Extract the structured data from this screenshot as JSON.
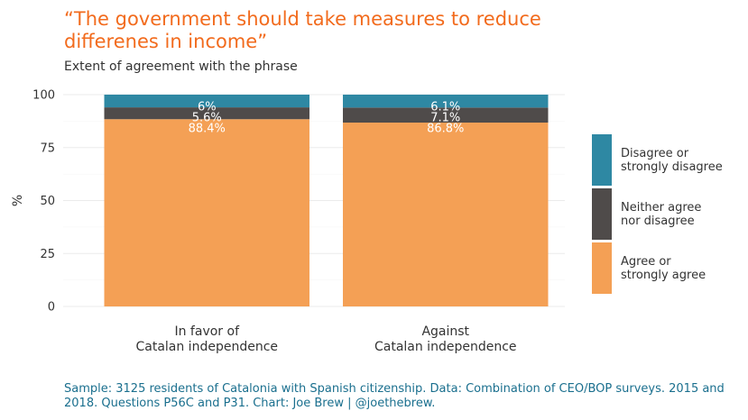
{
  "chart_data": {
    "type": "bar",
    "stacked": true,
    "title": "“The government should take measures to reduce differenes in income”",
    "subtitle": "Extent of agreement with the phrase",
    "ylabel": "%",
    "xlabel": "",
    "ylim": [
      0,
      100
    ],
    "yticks": [
      0,
      25,
      50,
      75,
      100
    ],
    "grid": true,
    "legend_position": "right",
    "categories": [
      "In favor of\nCatalan independence",
      "Against\nCatalan independence"
    ],
    "series": [
      {
        "name": "Agree or\nstrongly agree",
        "color": "#f4a055",
        "values": [
          88.4,
          86.8
        ],
        "labels": [
          "88.4%",
          "86.8%"
        ]
      },
      {
        "name": "Neither agree\nnor disagree",
        "color": "#4f4b4a",
        "values": [
          5.6,
          7.1
        ],
        "labels": [
          "5.6%",
          "7.1%"
        ]
      },
      {
        "name": "Disagree or\nstrongly disagree",
        "color": "#2e88a3",
        "values": [
          6,
          6.1
        ],
        "labels": [
          "6%",
          "6.1%"
        ]
      }
    ],
    "legend_order": [
      2,
      1,
      0
    ],
    "caption": "Sample: 3125 residents of Catalonia with Spanish citizenship. Data: Combination of CEO/BOP surveys. 2015 and 2018. Questions P56C and P31. Chart: Joe Brew | @joethebrew."
  }
}
